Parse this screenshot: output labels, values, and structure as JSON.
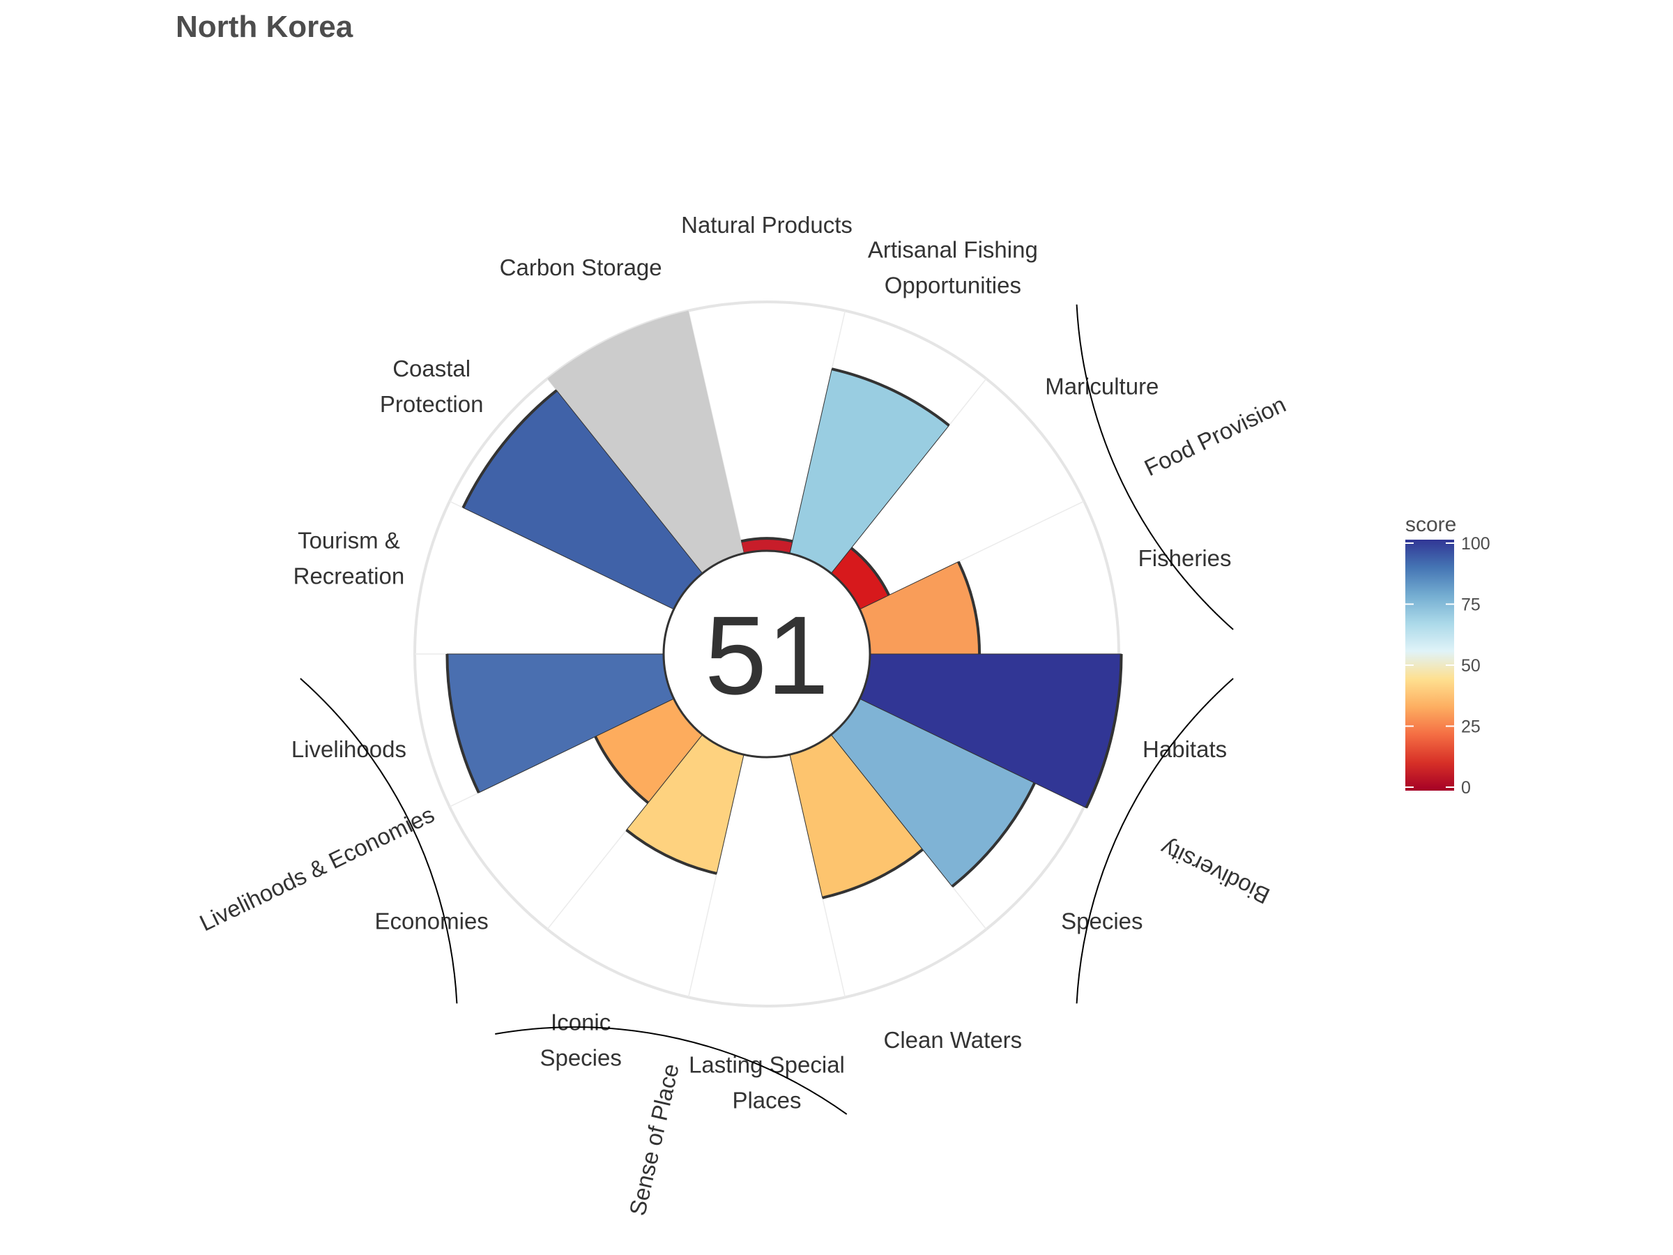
{
  "chart_data": {
    "type": "flower",
    "title": "North Korea",
    "overall_score": 51,
    "score_max": 100,
    "goals": [
      {
        "name": "Fisheries",
        "lines": [
          "Fisheries"
        ],
        "score": 44,
        "color": "#f99d59",
        "group": "Food Provision"
      },
      {
        "name": "Mariculture",
        "lines": [
          "Mariculture"
        ],
        "score": 13,
        "color": "#d7191c",
        "group": "Food Provision"
      },
      {
        "name": "Artisanal Fishing Opportunities",
        "lines": [
          "Artisanal Fishing",
          "Opportunities"
        ],
        "score": 76,
        "color": "#99cde1"
      },
      {
        "name": "Natural Products",
        "lines": [
          "Natural Products"
        ],
        "score": 5,
        "color": "#c81d2a"
      },
      {
        "name": "Carbon Storage",
        "lines": [
          "Carbon Storage"
        ],
        "score": null,
        "color": "#cccccc"
      },
      {
        "name": "Coastal Protection",
        "lines": [
          "Coastal",
          "Protection"
        ],
        "score": 94,
        "color": "#4062a8"
      },
      {
        "name": "Tourism & Recreation",
        "lines": [
          "Tourism &",
          "Recreation"
        ],
        "score": 0,
        "color": "#ffffff"
      },
      {
        "name": "Livelihoods",
        "lines": [
          "Livelihoods"
        ],
        "score": 87,
        "color": "#4a6fb0",
        "group": "Livelihoods & Economies"
      },
      {
        "name": "Economies",
        "lines": [
          "Economies"
        ],
        "score": 35,
        "color": "#fdac5d",
        "group": "Livelihoods & Economies"
      },
      {
        "name": "Iconic Species",
        "lines": [
          "Iconic",
          "Species"
        ],
        "score": 49,
        "color": "#fed27f",
        "group": "Sense of Place"
      },
      {
        "name": "Lasting Special Places",
        "lines": [
          "Lasting Special",
          "Places"
        ],
        "score": 0,
        "color": "#ffffff",
        "group": "Sense of Place"
      },
      {
        "name": "Clean Waters",
        "lines": [
          "Clean Waters"
        ],
        "score": 59,
        "color": "#fdc46e"
      },
      {
        "name": "Species",
        "lines": [
          "Species"
        ],
        "score": 78,
        "color": "#7fb3d5",
        "group": "Biodiversity"
      },
      {
        "name": "Habitats",
        "lines": [
          "Habitats"
        ],
        "score": 101,
        "color": "#313695",
        "group": "Biodiversity"
      }
    ],
    "groups": [
      "Food Provision",
      "Biodiversity",
      "Sense of Place",
      "Livelihoods & Economies"
    ],
    "legend": {
      "title": "score",
      "ticks": [
        0,
        25,
        50,
        75,
        100
      ],
      "placement": "right",
      "colors": [
        "#a50026",
        "#d73027",
        "#f46d43",
        "#fdae61",
        "#fee090",
        "#e0f3f8",
        "#abd9e9",
        "#74add1",
        "#4575b4",
        "#313695"
      ]
    }
  }
}
